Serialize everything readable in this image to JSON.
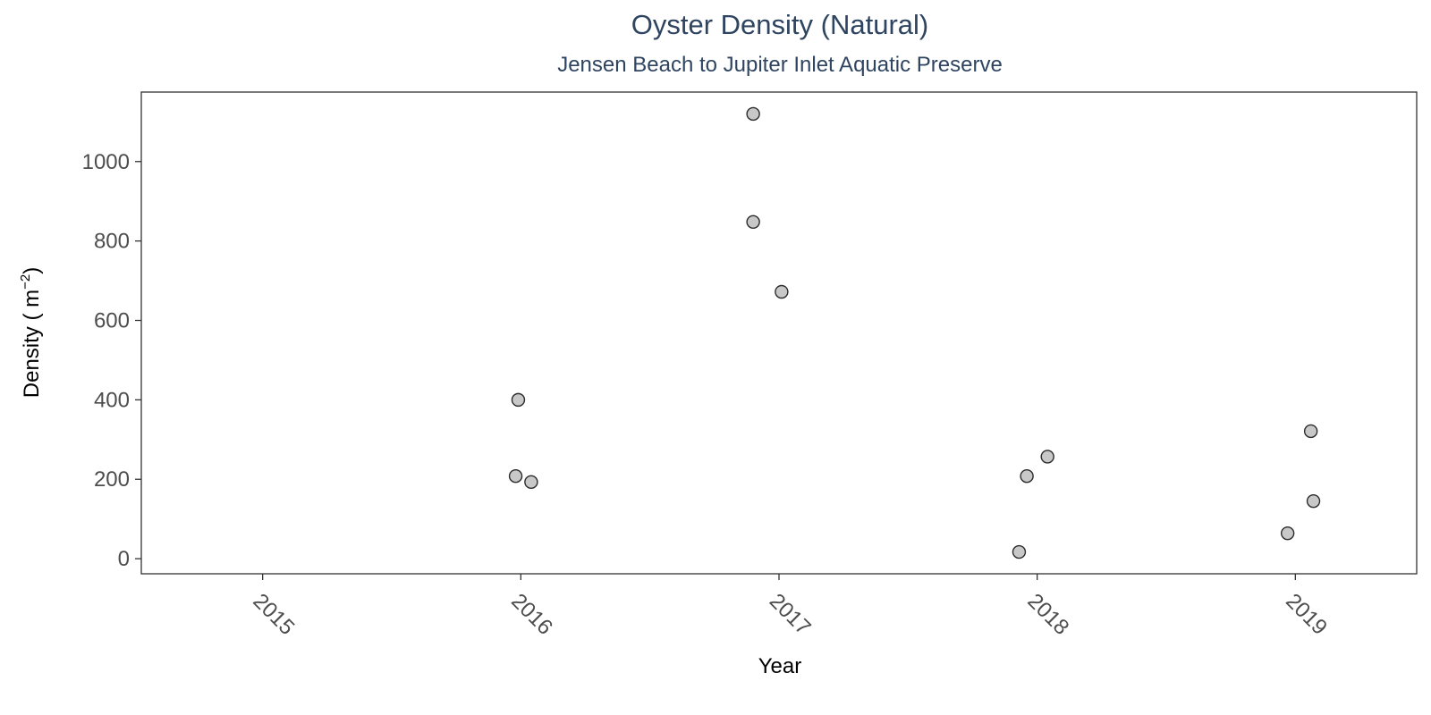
{
  "chart_data": {
    "type": "scatter",
    "title": "Oyster Density (Natural)",
    "subtitle": "Jensen Beach to Jupiter Inlet Aquatic Preserve",
    "xlabel": "Year",
    "ylabel_main": "Density ( m",
    "ylabel_sup": "−2",
    "ylabel_close": ")",
    "xlim": [
      2014.53,
      2019.47
    ],
    "ylim": [
      -38,
      1175
    ],
    "x_ticks": [
      2015,
      2016,
      2017,
      2018,
      2019
    ],
    "x_tick_labels": [
      "2015",
      "2016",
      "2017",
      "2018",
      "2019"
    ],
    "y_ticks": [
      0,
      200,
      400,
      600,
      800,
      1000
    ],
    "y_tick_labels": [
      "0",
      "200",
      "400",
      "600",
      "800",
      "1000"
    ],
    "grid": false,
    "legend": "none",
    "points": [
      {
        "x": 2015.99,
        "y": 400
      },
      {
        "x": 2015.98,
        "y": 208
      },
      {
        "x": 2016.04,
        "y": 193
      },
      {
        "x": 2016.9,
        "y": 1120
      },
      {
        "x": 2016.9,
        "y": 848
      },
      {
        "x": 2017.01,
        "y": 672
      },
      {
        "x": 2017.93,
        "y": 17
      },
      {
        "x": 2017.96,
        "y": 208
      },
      {
        "x": 2018.04,
        "y": 257
      },
      {
        "x": 2018.97,
        "y": 64
      },
      {
        "x": 2019.07,
        "y": 145
      },
      {
        "x": 2019.06,
        "y": 321
      }
    ],
    "colors": {
      "point_fill": "#c8c8c8",
      "point_stroke": "#2b2b2b",
      "title": "#2e4460",
      "tick_text": "#4d4d4d",
      "panel_border": "#333333"
    }
  }
}
